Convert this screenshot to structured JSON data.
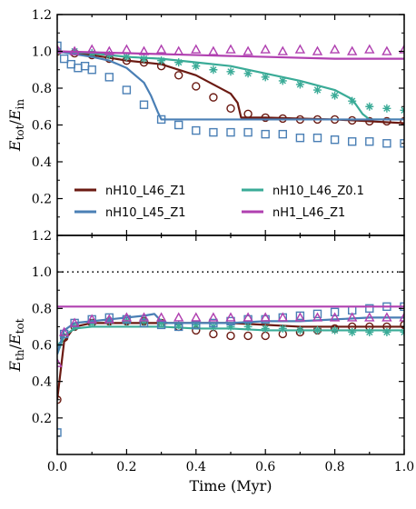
{
  "chart_data": [
    {
      "type": "line",
      "panel": "top",
      "ylabel": "E_tot/E_in",
      "xlim": [
        0,
        1.0
      ],
      "ylim": [
        0,
        1.2
      ],
      "yticks": [
        "0.2",
        "0.4",
        "0.6",
        "0.8",
        "1.0",
        "1.2"
      ],
      "legend": {
        "placement": "lower-center",
        "entries": [
          {
            "label": "nH10_L46_Z1",
            "color": "#6b1a12"
          },
          {
            "label": "nH10_L46_Z0.1",
            "color": "#3aab97"
          },
          {
            "label": "nH10_L45_Z1",
            "color": "#4a7fb5"
          },
          {
            "label": "nH1_L46_Z1",
            "color": "#b040b0"
          }
        ]
      },
      "series": [
        {
          "name": "nH10_L46_Z1",
          "color": "#6b1a12",
          "style": "line",
          "x": [
            0,
            0.1,
            0.2,
            0.3,
            0.4,
            0.45,
            0.5,
            0.52,
            0.53,
            0.55,
            0.6,
            0.7,
            0.8,
            0.9,
            1.0
          ],
          "y": [
            1.0,
            0.98,
            0.95,
            0.93,
            0.87,
            0.82,
            0.77,
            0.72,
            0.64,
            0.64,
            0.64,
            0.635,
            0.63,
            0.62,
            0.61
          ]
        },
        {
          "name": "nH10_L46_Z1",
          "color": "#6b1a12",
          "style": "circles",
          "x": [
            0,
            0.05,
            0.1,
            0.15,
            0.2,
            0.25,
            0.3,
            0.35,
            0.4,
            0.45,
            0.5,
            0.55,
            0.6,
            0.65,
            0.7,
            0.75,
            0.8,
            0.85,
            0.9,
            0.95,
            1.0
          ],
          "y": [
            1.0,
            0.99,
            0.98,
            0.96,
            0.95,
            0.94,
            0.92,
            0.87,
            0.81,
            0.75,
            0.69,
            0.66,
            0.64,
            0.635,
            0.63,
            0.63,
            0.63,
            0.625,
            0.62,
            0.62,
            0.62
          ]
        },
        {
          "name": "nH10_L46_Z0.1",
          "color": "#3aab97",
          "style": "line",
          "x": [
            0,
            0.1,
            0.2,
            0.3,
            0.4,
            0.5,
            0.6,
            0.7,
            0.8,
            0.85,
            0.88,
            0.9,
            0.95,
            1.0
          ],
          "y": [
            1.0,
            0.99,
            0.97,
            0.96,
            0.94,
            0.92,
            0.88,
            0.84,
            0.79,
            0.74,
            0.66,
            0.63,
            0.63,
            0.63
          ]
        },
        {
          "name": "nH10_L46_Z0.1",
          "color": "#3aab97",
          "style": "stars",
          "x": [
            0,
            0.05,
            0.1,
            0.15,
            0.2,
            0.25,
            0.3,
            0.35,
            0.4,
            0.45,
            0.5,
            0.55,
            0.6,
            0.65,
            0.7,
            0.75,
            0.8,
            0.85,
            0.9,
            0.95,
            1.0
          ],
          "y": [
            1.0,
            1.0,
            0.99,
            0.98,
            0.97,
            0.96,
            0.95,
            0.94,
            0.92,
            0.9,
            0.89,
            0.88,
            0.86,
            0.84,
            0.82,
            0.79,
            0.76,
            0.73,
            0.7,
            0.69,
            0.68
          ]
        },
        {
          "name": "nH10_L45_Z1",
          "color": "#4a7fb5",
          "style": "line",
          "x": [
            0,
            0.1,
            0.15,
            0.2,
            0.25,
            0.27,
            0.29,
            0.3,
            0.35,
            0.4,
            0.5,
            0.6,
            0.7,
            0.8,
            0.9,
            1.0
          ],
          "y": [
            1.0,
            0.97,
            0.95,
            0.91,
            0.83,
            0.76,
            0.67,
            0.63,
            0.63,
            0.63,
            0.63,
            0.63,
            0.63,
            0.63,
            0.63,
            0.63
          ]
        },
        {
          "name": "nH10_L45_Z1",
          "color": "#4a7fb5",
          "style": "squares",
          "x": [
            0,
            0.02,
            0.04,
            0.06,
            0.08,
            0.1,
            0.15,
            0.2,
            0.25,
            0.3,
            0.35,
            0.4,
            0.45,
            0.5,
            0.55,
            0.6,
            0.65,
            0.7,
            0.75,
            0.8,
            0.85,
            0.9,
            0.95,
            1.0
          ],
          "y": [
            1.03,
            0.96,
            0.93,
            0.91,
            0.92,
            0.9,
            0.86,
            0.79,
            0.71,
            0.63,
            0.6,
            0.57,
            0.56,
            0.56,
            0.56,
            0.55,
            0.55,
            0.53,
            0.53,
            0.52,
            0.51,
            0.51,
            0.5,
            0.5
          ]
        },
        {
          "name": "nH1_L46_Z1",
          "color": "#b040b0",
          "style": "line",
          "x": [
            0,
            0.2,
            0.4,
            0.6,
            0.8,
            1.0
          ],
          "y": [
            1.0,
            0.99,
            0.98,
            0.97,
            0.96,
            0.96
          ]
        },
        {
          "name": "nH1_L46_Z1",
          "color": "#b040b0",
          "style": "triangles",
          "x": [
            0,
            0.05,
            0.1,
            0.15,
            0.2,
            0.25,
            0.3,
            0.35,
            0.4,
            0.45,
            0.5,
            0.55,
            0.6,
            0.65,
            0.7,
            0.75,
            0.8,
            0.85,
            0.9,
            0.95,
            1.0
          ],
          "y": [
            1.01,
            1.0,
            1.01,
            1.0,
            1.01,
            1.0,
            1.01,
            1.0,
            1.01,
            1.0,
            1.01,
            1.0,
            1.01,
            1.0,
            1.01,
            1.0,
            1.01,
            1.0,
            1.01,
            1.0,
            1.01
          ]
        }
      ]
    },
    {
      "type": "line",
      "panel": "bottom",
      "ylabel": "E_th/E_tot",
      "xlabel": "Time (Myr)",
      "xlim": [
        0,
        1.0
      ],
      "ylim": [
        0,
        1.2
      ],
      "xticks": [
        "0.0",
        "0.2",
        "0.4",
        "0.6",
        "0.8",
        "1.0"
      ],
      "yticks": [
        "0.2",
        "0.4",
        "0.6",
        "0.8",
        "1.0",
        "1.2"
      ],
      "reference_line": {
        "y": 1.0,
        "style": "dotted",
        "color": "#000000"
      },
      "series": [
        {
          "name": "nH10_L46_Z1",
          "color": "#6b1a12",
          "style": "line",
          "x": [
            0,
            0.02,
            0.05,
            0.1,
            0.2,
            0.3,
            0.4,
            0.5,
            0.6,
            0.7,
            0.8,
            0.9,
            1.0
          ],
          "y": [
            0.3,
            0.62,
            0.7,
            0.72,
            0.72,
            0.72,
            0.72,
            0.72,
            0.71,
            0.7,
            0.7,
            0.7,
            0.7
          ]
        },
        {
          "name": "nH10_L46_Z1",
          "color": "#6b1a12",
          "style": "circles",
          "x": [
            0,
            0.02,
            0.05,
            0.1,
            0.15,
            0.2,
            0.25,
            0.3,
            0.35,
            0.4,
            0.45,
            0.5,
            0.55,
            0.6,
            0.65,
            0.7,
            0.75,
            0.8,
            0.85,
            0.9,
            0.95,
            1.0
          ],
          "y": [
            0.3,
            0.64,
            0.7,
            0.72,
            0.73,
            0.73,
            0.73,
            0.72,
            0.7,
            0.68,
            0.66,
            0.65,
            0.65,
            0.65,
            0.66,
            0.67,
            0.68,
            0.69,
            0.7,
            0.7,
            0.7,
            0.71
          ]
        },
        {
          "name": "nH10_L46_Z0.1",
          "color": "#3aab97",
          "style": "line",
          "x": [
            0,
            0.02,
            0.05,
            0.1,
            0.2,
            0.3,
            0.4,
            0.5,
            0.6,
            0.7,
            0.8,
            0.9,
            1.0
          ],
          "y": [
            0.55,
            0.65,
            0.69,
            0.7,
            0.7,
            0.7,
            0.69,
            0.69,
            0.68,
            0.68,
            0.68,
            0.68,
            0.68
          ]
        },
        {
          "name": "nH10_L46_Z0.1",
          "color": "#3aab97",
          "style": "stars",
          "x": [
            0,
            0.05,
            0.1,
            0.15,
            0.2,
            0.25,
            0.3,
            0.35,
            0.4,
            0.45,
            0.5,
            0.55,
            0.6,
            0.65,
            0.7,
            0.75,
            0.8,
            0.85,
            0.9,
            0.95,
            1.0
          ],
          "y": [
            0.6,
            0.7,
            0.72,
            0.73,
            0.73,
            0.73,
            0.72,
            0.71,
            0.71,
            0.7,
            0.7,
            0.7,
            0.69,
            0.69,
            0.68,
            0.68,
            0.68,
            0.67,
            0.67,
            0.67,
            0.67
          ]
        },
        {
          "name": "nH10_L45_Z1",
          "color": "#4a7fb5",
          "style": "line",
          "x": [
            0,
            0.02,
            0.05,
            0.1,
            0.15,
            0.2,
            0.25,
            0.28,
            0.3,
            0.32,
            0.4,
            0.5,
            0.6,
            0.7,
            0.8,
            0.9,
            1.0
          ],
          "y": [
            0.55,
            0.68,
            0.72,
            0.73,
            0.74,
            0.75,
            0.76,
            0.77,
            0.73,
            0.72,
            0.72,
            0.72,
            0.73,
            0.73,
            0.74,
            0.75,
            0.75
          ]
        },
        {
          "name": "nH10_L45_Z1",
          "color": "#4a7fb5",
          "style": "squares",
          "x": [
            0,
            0.02,
            0.05,
            0.1,
            0.15,
            0.2,
            0.25,
            0.3,
            0.35,
            0.4,
            0.45,
            0.5,
            0.55,
            0.6,
            0.65,
            0.7,
            0.75,
            0.8,
            0.85,
            0.9,
            0.95,
            1.0
          ],
          "y": [
            0.12,
            0.66,
            0.72,
            0.74,
            0.75,
            0.74,
            0.72,
            0.71,
            0.7,
            0.71,
            0.72,
            0.73,
            0.74,
            0.74,
            0.75,
            0.76,
            0.77,
            0.78,
            0.79,
            0.8,
            0.81,
            0.81
          ]
        },
        {
          "name": "nH1_L46_Z1",
          "color": "#b040b0",
          "style": "line",
          "x": [
            0,
            0.05,
            0.2,
            0.4,
            0.6,
            0.8,
            1.0
          ],
          "y": [
            0.81,
            0.81,
            0.81,
            0.81,
            0.81,
            0.81,
            0.81
          ]
        },
        {
          "name": "nH1_L46_Z1",
          "color": "#b040b0",
          "style": "triangles",
          "x": [
            0,
            0.02,
            0.05,
            0.1,
            0.15,
            0.2,
            0.25,
            0.3,
            0.35,
            0.4,
            0.45,
            0.5,
            0.55,
            0.6,
            0.65,
            0.7,
            0.75,
            0.8,
            0.85,
            0.9,
            0.95,
            1.0
          ],
          "y": [
            0.5,
            0.67,
            0.72,
            0.74,
            0.74,
            0.75,
            0.75,
            0.75,
            0.75,
            0.75,
            0.75,
            0.75,
            0.75,
            0.75,
            0.75,
            0.75,
            0.75,
            0.75,
            0.75,
            0.75,
            0.75,
            0.75
          ]
        }
      ]
    }
  ]
}
